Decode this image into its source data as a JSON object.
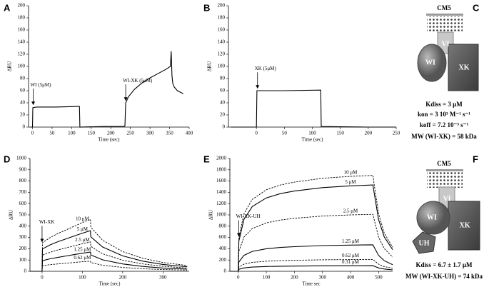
{
  "chart_data": [
    {
      "type": "line",
      "label": "A",
      "xlabel": "Time (sec)",
      "ylabel": "ΔRU",
      "x": [
        -5,
        0,
        1,
        10,
        60,
        118,
        120,
        121,
        180,
        234,
        236,
        238,
        245,
        260,
        280,
        300,
        320,
        340,
        352,
        354,
        356,
        358,
        362,
        370,
        385
      ],
      "series": [
        {
          "color": "#000000",
          "dash": false,
          "values": [
            0,
            0,
            32,
            33,
            33,
            34,
            34,
            0,
            1,
            1,
            2,
            40,
            50,
            62,
            73,
            81,
            88,
            95,
            100,
            125,
            85,
            72,
            66,
            60,
            55
          ]
        }
      ],
      "xlim": [
        -10,
        400
      ],
      "ylim": [
        0,
        200
      ],
      "xticks": [
        0,
        50,
        100,
        150,
        200,
        250,
        300,
        350,
        400
      ],
      "yticks": [
        0,
        20,
        40,
        60,
        80,
        100,
        120,
        140,
        160,
        180,
        200
      ],
      "annotations": [
        {
          "text": "WI (5μM)",
          "x": 2,
          "y": 35
        },
        {
          "text": "WI-XK (5μM)",
          "x": 238,
          "y": 42
        }
      ]
    },
    {
      "type": "line",
      "label": "B",
      "xlabel": "Time (sec)",
      "ylabel": "ΔRU",
      "x": [
        -45,
        0,
        1,
        50,
        115,
        116,
        200,
        250
      ],
      "series": [
        {
          "color": "#000000",
          "dash": false,
          "values": [
            0,
            0,
            60,
            60,
            61,
            1,
            0,
            0
          ]
        }
      ],
      "xlim": [
        -50,
        250
      ],
      "ylim": [
        0,
        200
      ],
      "xticks": [
        0,
        50,
        100,
        150,
        200,
        250
      ],
      "yticks": [
        0,
        20,
        40,
        60,
        80,
        100,
        120,
        140,
        160,
        180,
        200
      ],
      "annotations": [
        {
          "text": "XK (5μM)",
          "x": 2,
          "y": 62
        }
      ]
    },
    {
      "type": "line",
      "label": "D",
      "xlabel": "Time (sec)",
      "ylabel": "ΔRU",
      "x": [
        -30,
        0,
        1,
        20,
        40,
        60,
        80,
        100,
        120,
        121,
        150,
        200,
        250,
        300,
        360
      ],
      "series": [
        {
          "name": "10 μM",
          "color": "#000000",
          "dash": true,
          "values": [
            0,
            0,
            253,
            299,
            336,
            368,
            400,
            432,
            460,
            391,
            276,
            175,
            115,
            78,
            51
          ]
        },
        {
          "name": "5 μM",
          "color": "#000000",
          "dash": false,
          "values": [
            0,
            0,
            198,
            234,
            263,
            288,
            313,
            338,
            360,
            306,
            216,
            137,
            90,
            61,
            40
          ]
        },
        {
          "name": "2.5 μM",
          "color": "#000000",
          "dash": true,
          "values": [
            0,
            0,
            143,
            169,
            190,
            208,
            226,
            244,
            260,
            221,
            156,
            99,
            65,
            44,
            29
          ]
        },
        {
          "name": "1.25 μM",
          "color": "#000000",
          "dash": false,
          "values": [
            0,
            0,
            94,
            111,
            124,
            136,
            148,
            160,
            170,
            145,
            102,
            65,
            43,
            29,
            19
          ]
        },
        {
          "name": "0.62 μM",
          "color": "#000000",
          "dash": true,
          "values": [
            0,
            0,
            50,
            59,
            66,
            72,
            78,
            85,
            90,
            77,
            54,
            34,
            23,
            15,
            10
          ]
        }
      ],
      "xlim": [
        -30,
        365
      ],
      "ylim": [
        0,
        1000
      ],
      "xticks": [
        0,
        100,
        200,
        300
      ],
      "yticks": [
        0,
        100,
        200,
        300,
        400,
        500,
        600,
        700,
        800,
        900,
        1000
      ],
      "annotations": [
        {
          "text": "WI-XK",
          "x": 0,
          "y": 250
        }
      ]
    },
    {
      "type": "line",
      "label": "E",
      "xlabel": "Time sec",
      "ylabel": "ΔRU",
      "x": [
        -30,
        0,
        2,
        20,
        50,
        100,
        150,
        200,
        300,
        400,
        480,
        482,
        500,
        520,
        550
      ],
      "series": [
        {
          "name": "10 μM",
          "color": "#000000",
          "dash": true,
          "values": [
            0,
            0,
            595,
            1020,
            1275,
            1445,
            1530,
            1581,
            1649,
            1683,
            1700,
            1615,
            1020,
            680,
            425
          ]
        },
        {
          "name": "5 μM",
          "color": "#000000",
          "dash": false,
          "values": [
            0,
            0,
            536,
            918,
            1148,
            1301,
            1377,
            1423,
            1484,
            1515,
            1530,
            1454,
            918,
            612,
            383
          ]
        },
        {
          "name": "2.5 μM",
          "color": "#000000",
          "dash": true,
          "values": [
            0,
            0,
            354,
            606,
            758,
            859,
            909,
            939,
            980,
            1000,
            1010,
            960,
            606,
            404,
            253
          ]
        },
        {
          "name": "1.25 μM",
          "color": "#000000",
          "dash": false,
          "values": [
            0,
            0,
            165,
            282,
            353,
            400,
            423,
            437,
            456,
            465,
            470,
            447,
            282,
            188,
            118
          ]
        },
        {
          "name": "0.62 μM",
          "color": "#000000",
          "dash": true,
          "values": [
            0,
            0,
            74,
            126,
            158,
            179,
            189,
            195,
            204,
            208,
            210,
            200,
            126,
            84,
            53
          ]
        },
        {
          "name": "0.31 μM",
          "color": "#000000",
          "dash": false,
          "values": [
            0,
            0,
            35,
            60,
            75,
            85,
            90,
            93,
            97,
            99,
            100,
            95,
            60,
            40,
            25
          ]
        }
      ],
      "xlim": [
        -30,
        550
      ],
      "ylim": [
        0,
        2000
      ],
      "xticks": [
        0,
        100,
        200,
        300,
        400,
        500
      ],
      "yticks": [
        0,
        200,
        400,
        600,
        800,
        1000,
        1200,
        1400,
        1600,
        1800,
        2000
      ],
      "annotations": [
        {
          "text": "WI-XK-UH",
          "x": 2,
          "y": 600
        }
      ]
    }
  ],
  "diagrams": [
    {
      "label": "C",
      "surface": "CM5",
      "parts": [
        "VI",
        "WI",
        "XK"
      ],
      "lines": [
        "Kdiss = 3 μM",
        "kon = 3 10³ M⁻¹ s⁻¹",
        "koff = 7.2 10⁻³ s⁻¹",
        "MW (WI-XK) = 58 kDa"
      ]
    },
    {
      "label": "F",
      "surface": "CM5",
      "parts": [
        "VI",
        "WI",
        "UH",
        "XK"
      ],
      "lines": [
        "Kdiss = 6.7 ± 1.7 μM",
        "MW (WI-XK-UH) = 74 kDa"
      ]
    }
  ]
}
